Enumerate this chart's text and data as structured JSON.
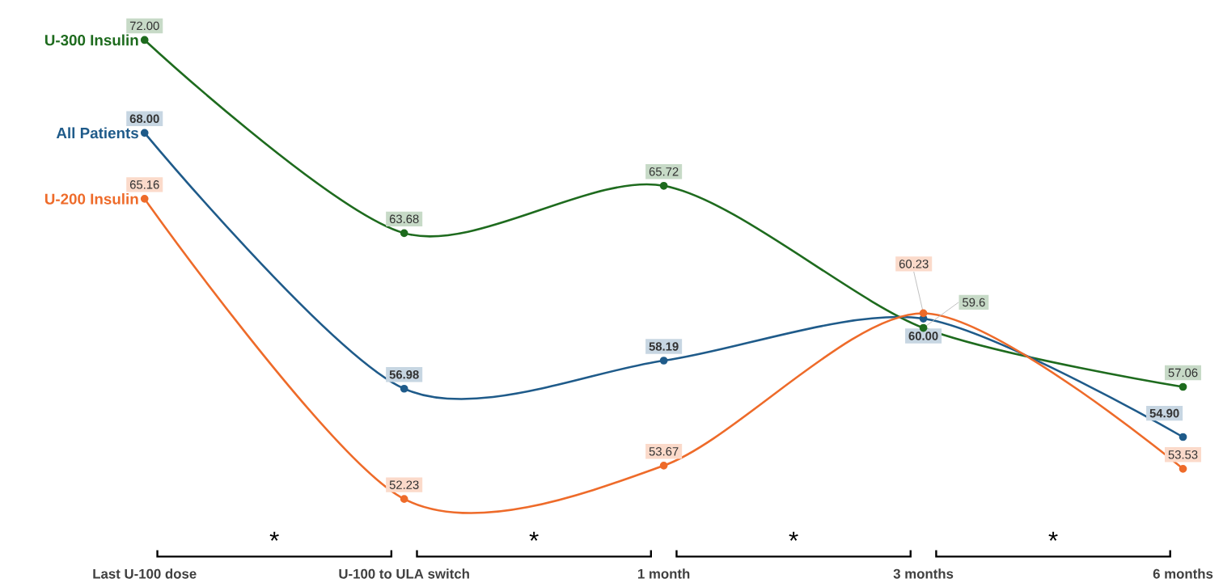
{
  "chart_data": {
    "type": "line",
    "categories": [
      "Last U-100 dose",
      "U-100 to ULA switch",
      "1 month",
      "3 months",
      "6 months"
    ],
    "series": [
      {
        "name": "U-300 Insulin",
        "color": "#1e6b1e",
        "values": [
          72.0,
          63.68,
          65.72,
          59.6,
          57.06
        ],
        "value_labels": [
          "72.00",
          "63.68",
          "65.72",
          "59.6",
          "57.06"
        ]
      },
      {
        "name": "All Patients",
        "color": "#1f5b8a",
        "values": [
          68.0,
          56.98,
          58.19,
          60.0,
          54.9
        ],
        "value_labels": [
          "68.00",
          "56.98",
          "58.19",
          "60.00",
          "54.90"
        ]
      },
      {
        "name": "U-200 Insulin",
        "color": "#ee6b2a",
        "values": [
          65.16,
          52.23,
          53.67,
          60.23,
          53.53
        ],
        "value_labels": [
          "65.16",
          "52.23",
          "53.67",
          "60.23",
          "53.53"
        ]
      }
    ],
    "annotations": [
      "*",
      "*",
      "*",
      "*"
    ],
    "marker": "circle",
    "line_style": "solid",
    "grid": false,
    "legend": false,
    "tick_labels": "x"
  }
}
